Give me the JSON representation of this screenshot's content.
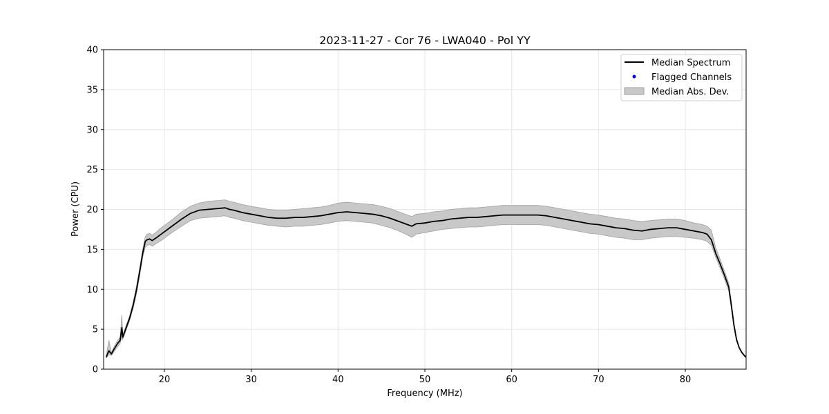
{
  "chart_data": {
    "type": "line",
    "title": "2023-11-27 - Cor 76 - LWA040 - Pol YY",
    "xlabel": "Frequency (MHz)",
    "ylabel": "Power (CPU)",
    "xlim": [
      13,
      87
    ],
    "ylim": [
      0,
      40
    ],
    "xticks": [
      20,
      30,
      40,
      50,
      60,
      70,
      80
    ],
    "yticks": [
      0,
      5,
      10,
      15,
      20,
      25,
      30,
      35,
      40
    ],
    "grid": true,
    "legend_position": "top-right",
    "legend": [
      "Median Spectrum",
      "Flagged Channels",
      "Median Abs. Dev."
    ],
    "colors": {
      "median": "#000000",
      "flagged": "#0000ff",
      "mad_fill": "#c8c8c8",
      "mad_edge": "#a0a0a0"
    },
    "series": [
      {
        "name": "Median Spectrum",
        "x": [
          13.3,
          13.6,
          13.9,
          14.2,
          14.6,
          14.9,
          15.1,
          15.2,
          15.3,
          15.6,
          16.0,
          16.4,
          16.8,
          17.2,
          17.5,
          17.8,
          18.0,
          18.3,
          18.6,
          19.0,
          19.5,
          20.0,
          21.0,
          22.0,
          23.0,
          24.0,
          25.0,
          26.0,
          27.0,
          27.5,
          28.0,
          29.0,
          30.0,
          31.0,
          32.0,
          33.0,
          34.0,
          35.0,
          36.0,
          37.0,
          38.0,
          39.0,
          40.0,
          41.0,
          42.0,
          43.0,
          44.0,
          45.0,
          46.0,
          47.0,
          48.0,
          48.5,
          49.0,
          50.0,
          51.0,
          52.0,
          53.0,
          54.0,
          55.0,
          56.0,
          57.0,
          58.0,
          59.0,
          60.0,
          61.0,
          62.0,
          63.0,
          64.0,
          65.0,
          66.0,
          67.0,
          68.0,
          69.0,
          70.0,
          71.0,
          72.0,
          73.0,
          74.0,
          75.0,
          76.0,
          77.0,
          78.0,
          79.0,
          80.0,
          81.0,
          82.0,
          82.5,
          83.0,
          83.5,
          84.0,
          84.5,
          85.0,
          85.3,
          85.6,
          85.9,
          86.2,
          86.5,
          86.8,
          87.0
        ],
        "y": [
          1.5,
          2.3,
          1.9,
          2.5,
          3.2,
          3.6,
          5.2,
          4.0,
          4.3,
          5.2,
          6.4,
          8.0,
          10.0,
          12.5,
          14.5,
          16.0,
          16.2,
          16.3,
          16.1,
          16.4,
          16.8,
          17.2,
          18.0,
          18.8,
          19.5,
          19.9,
          20.0,
          20.1,
          20.2,
          20.0,
          19.9,
          19.6,
          19.4,
          19.2,
          19.0,
          18.9,
          18.9,
          19.0,
          19.0,
          19.1,
          19.2,
          19.4,
          19.6,
          19.7,
          19.6,
          19.5,
          19.4,
          19.2,
          18.9,
          18.5,
          18.1,
          17.9,
          18.2,
          18.3,
          18.5,
          18.6,
          18.8,
          18.9,
          19.0,
          19.0,
          19.1,
          19.2,
          19.3,
          19.3,
          19.3,
          19.3,
          19.3,
          19.2,
          19.0,
          18.8,
          18.6,
          18.4,
          18.2,
          18.1,
          17.9,
          17.7,
          17.6,
          17.4,
          17.3,
          17.5,
          17.6,
          17.7,
          17.7,
          17.5,
          17.3,
          17.1,
          16.9,
          16.2,
          14.5,
          13.2,
          11.8,
          10.3,
          8.0,
          5.5,
          3.7,
          2.7,
          2.1,
          1.7,
          1.5
        ]
      },
      {
        "name": "Median Abs. Dev.",
        "x": [
          13.3,
          13.6,
          13.9,
          14.2,
          14.6,
          14.9,
          15.1,
          15.2,
          15.3,
          15.6,
          16.0,
          16.4,
          16.8,
          17.2,
          17.5,
          17.8,
          18.0,
          18.3,
          18.6,
          19.0,
          19.5,
          20.0,
          21.0,
          22.0,
          23.0,
          24.0,
          25.0,
          26.0,
          27.0,
          27.5,
          28.0,
          29.0,
          30.0,
          31.0,
          32.0,
          33.0,
          34.0,
          35.0,
          36.0,
          37.0,
          38.0,
          39.0,
          40.0,
          41.0,
          42.0,
          43.0,
          44.0,
          45.0,
          46.0,
          47.0,
          48.0,
          48.5,
          49.0,
          50.0,
          51.0,
          52.0,
          53.0,
          54.0,
          55.0,
          56.0,
          57.0,
          58.0,
          59.0,
          60.0,
          61.0,
          62.0,
          63.0,
          64.0,
          65.0,
          66.0,
          67.0,
          68.0,
          69.0,
          70.0,
          71.0,
          72.0,
          73.0,
          74.0,
          75.0,
          76.0,
          77.0,
          78.0,
          79.0,
          80.0,
          81.0,
          82.0,
          82.5,
          83.0,
          83.5,
          84.0,
          84.5,
          85.0,
          85.3,
          85.6,
          85.9,
          86.2,
          86.5,
          86.8,
          87.0
        ],
        "lower": [
          1.4,
          1.8,
          1.7,
          2.2,
          2.8,
          3.2,
          4.0,
          3.7,
          4.0,
          4.9,
          6.1,
          7.6,
          9.5,
          12.0,
          14.0,
          15.3,
          15.5,
          15.6,
          15.4,
          15.7,
          16.0,
          16.4,
          17.2,
          17.9,
          18.6,
          18.9,
          19.0,
          19.1,
          19.2,
          19.0,
          18.9,
          18.6,
          18.4,
          18.2,
          18.0,
          17.9,
          17.8,
          17.9,
          17.9,
          18.0,
          18.1,
          18.3,
          18.5,
          18.6,
          18.5,
          18.4,
          18.3,
          18.0,
          17.7,
          17.3,
          16.8,
          16.5,
          16.9,
          17.1,
          17.3,
          17.5,
          17.6,
          17.7,
          17.8,
          17.8,
          17.9,
          18.0,
          18.1,
          18.1,
          18.1,
          18.1,
          18.1,
          18.0,
          17.8,
          17.6,
          17.4,
          17.2,
          17.0,
          16.9,
          16.7,
          16.5,
          16.4,
          16.2,
          16.2,
          16.4,
          16.5,
          16.6,
          16.6,
          16.5,
          16.4,
          16.2,
          16.0,
          15.5,
          14.0,
          12.7,
          11.3,
          9.8,
          7.6,
          5.2,
          3.5,
          2.6,
          2.0,
          1.6,
          1.4
        ],
        "upper": [
          1.7,
          3.6,
          2.1,
          2.8,
          3.6,
          4.0,
          6.8,
          4.4,
          4.6,
          5.5,
          6.7,
          8.4,
          10.5,
          13.0,
          15.0,
          16.6,
          16.9,
          17.0,
          16.8,
          17.1,
          17.6,
          18.0,
          18.8,
          19.7,
          20.4,
          20.8,
          21.0,
          21.1,
          21.2,
          21.0,
          20.9,
          20.6,
          20.4,
          20.2,
          20.0,
          19.9,
          19.9,
          20.0,
          20.1,
          20.2,
          20.3,
          20.5,
          20.8,
          20.9,
          20.8,
          20.7,
          20.6,
          20.4,
          20.1,
          19.7,
          19.3,
          19.1,
          19.4,
          19.5,
          19.7,
          19.8,
          20.0,
          20.1,
          20.2,
          20.2,
          20.3,
          20.4,
          20.5,
          20.5,
          20.5,
          20.5,
          20.5,
          20.4,
          20.2,
          20.0,
          19.8,
          19.6,
          19.4,
          19.3,
          19.1,
          18.9,
          18.8,
          18.6,
          18.5,
          18.6,
          18.7,
          18.8,
          18.8,
          18.6,
          18.3,
          18.1,
          17.9,
          17.4,
          15.2,
          13.8,
          12.3,
          10.8,
          8.4,
          5.8,
          3.9,
          2.8,
          2.2,
          1.8,
          1.6
        ]
      },
      {
        "name": "Flagged Channels",
        "x": [],
        "y": []
      }
    ]
  }
}
